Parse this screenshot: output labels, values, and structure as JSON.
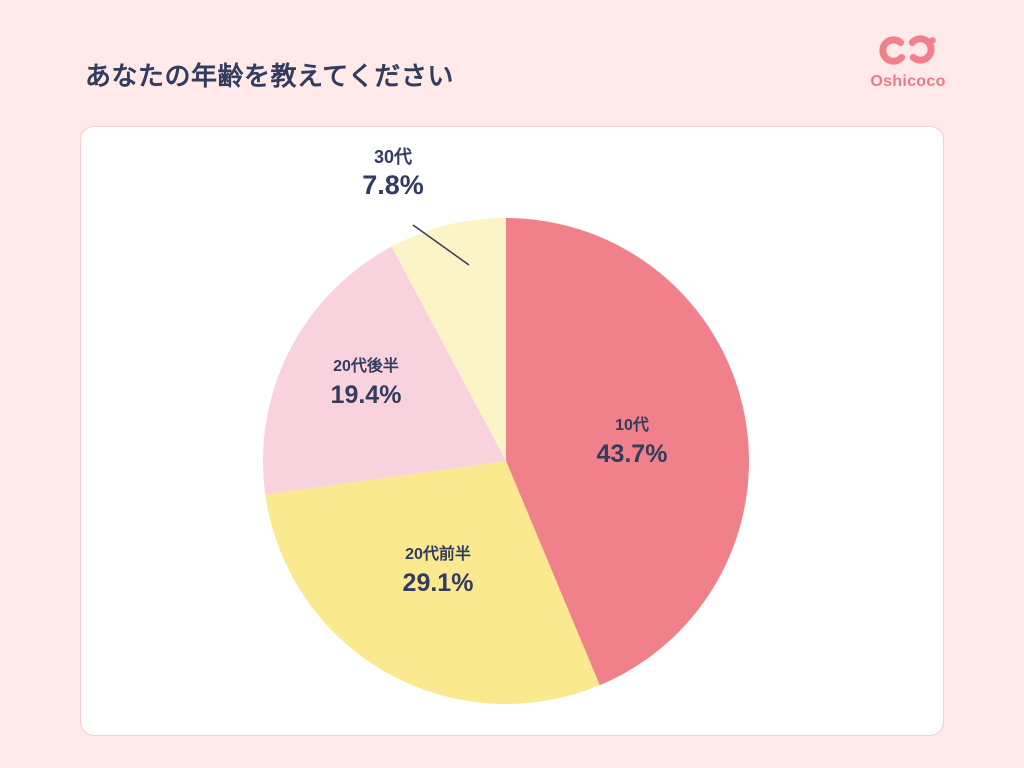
{
  "header": {
    "title": "あなたの年齢を教えてください",
    "logo_text": "Oshicoco"
  },
  "chart_data": {
    "type": "pie",
    "title": "あなたの年齢を教えてください",
    "categories": [
      "10代",
      "20代前半",
      "20代後半",
      "30代"
    ],
    "values": [
      43.7,
      29.1,
      19.4,
      7.8
    ],
    "unit": "%",
    "colors": [
      "#F0818A",
      "#FAE98E",
      "#F8D3DE",
      "#FAF4C6"
    ],
    "start_angle": "top",
    "direction": "clockwise",
    "legend": "none",
    "slices": [
      {
        "label": "10代",
        "pct": "43.7%"
      },
      {
        "label": "20代前半",
        "pct": "29.1%"
      },
      {
        "label": "20代後半",
        "pct": "19.4%"
      },
      {
        "label": "30代",
        "pct": "7.8%"
      }
    ]
  },
  "colors": {
    "background": "#FFE9E9",
    "card": "#FFFFFF",
    "title_text": "#333C5E",
    "brand_pink": "#F0818A"
  }
}
